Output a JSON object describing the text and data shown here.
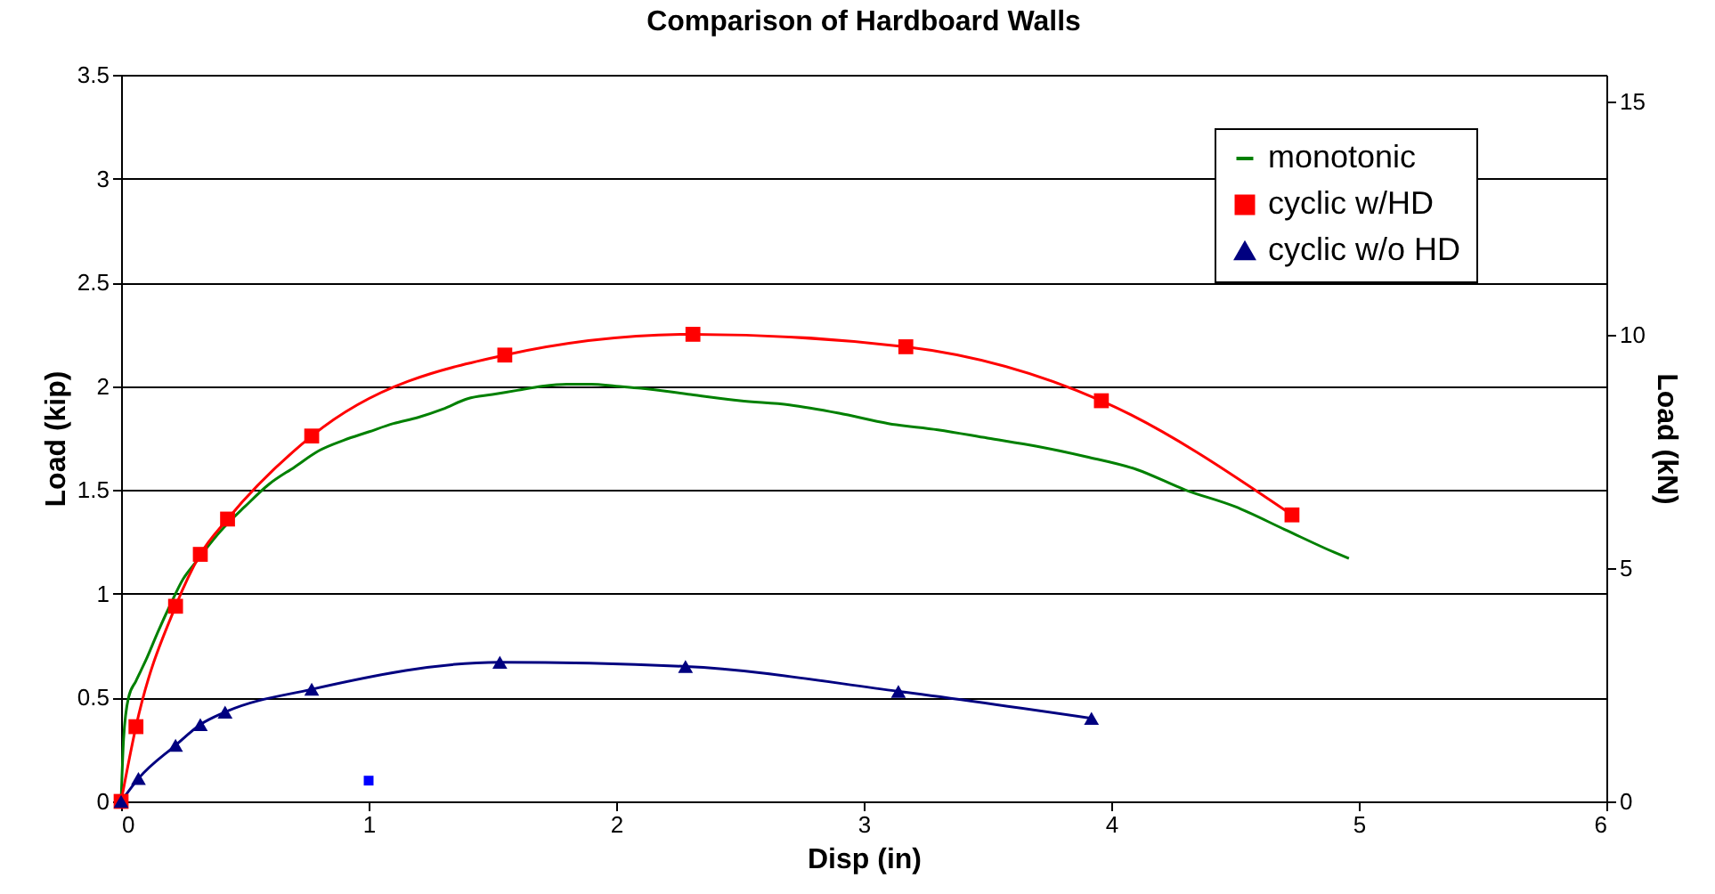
{
  "chart_data": {
    "type": "line",
    "title": "Comparison of Hardboard Walls",
    "xlabel": "Disp (in)",
    "ylabel": "Load (kip)",
    "y2label": "Load (kN)",
    "xlim": [
      0,
      6
    ],
    "xticks": [
      0,
      1,
      2,
      3,
      4,
      5,
      6
    ],
    "ylim": [
      0,
      3.5
    ],
    "yticks": [
      0,
      0.5,
      1,
      1.5,
      2,
      2.5,
      3,
      3.5
    ],
    "y2lim": [
      0,
      15.57
    ],
    "y2ticks": [
      0,
      5,
      10,
      15
    ],
    "grid": "y",
    "legend": "top right",
    "series": [
      {
        "name": "monotonic",
        "color": "#008000",
        "marker": "none",
        "x": [
          0,
          0.01,
          0.03,
          0.06,
          0.1,
          0.15,
          0.2,
          0.25,
          0.3,
          0.4,
          0.5,
          0.6,
          0.7,
          0.8,
          0.9,
          1.0,
          1.1,
          1.2,
          1.3,
          1.4,
          1.5,
          1.6,
          1.7,
          1.8,
          1.9,
          2.0,
          2.1,
          2.3,
          2.5,
          2.7,
          2.9,
          3.1,
          3.3,
          3.5,
          3.7,
          3.9,
          4.1,
          4.3,
          4.5,
          4.7,
          4.9,
          4.96
        ],
        "values": [
          0,
          0.3,
          0.5,
          0.58,
          0.68,
          0.82,
          0.95,
          1.07,
          1.15,
          1.3,
          1.42,
          1.53,
          1.61,
          1.69,
          1.74,
          1.78,
          1.82,
          1.85,
          1.89,
          1.94,
          1.96,
          1.98,
          2.0,
          2.01,
          2.01,
          2.0,
          1.99,
          1.96,
          1.93,
          1.91,
          1.87,
          1.82,
          1.79,
          1.75,
          1.71,
          1.66,
          1.6,
          1.5,
          1.42,
          1.31,
          1.2,
          1.17
        ]
      },
      {
        "name": "cyclic w/HD",
        "color": "#ff0000",
        "marker": "square",
        "x": [
          0,
          0.06,
          0.22,
          0.32,
          0.43,
          0.77,
          1.55,
          2.31,
          3.17,
          3.96,
          4.73
        ],
        "values": [
          0,
          0.36,
          0.94,
          1.19,
          1.36,
          1.76,
          2.15,
          2.25,
          2.19,
          1.93,
          1.38
        ]
      },
      {
        "name": "cyclic w/o HD",
        "color": "#000080",
        "marker": "triangle",
        "x": [
          0,
          0.07,
          0.22,
          0.32,
          0.42,
          0.77,
          1.53,
          2.28,
          3.14,
          3.92
        ],
        "values": [
          0,
          0.11,
          0.27,
          0.37,
          0.43,
          0.54,
          0.67,
          0.65,
          0.53,
          0.4
        ]
      },
      {
        "type": "scatter",
        "color": "#0000ff",
        "marker": "square",
        "x": [
          1.0
        ],
        "values": [
          0.1
        ]
      }
    ]
  }
}
